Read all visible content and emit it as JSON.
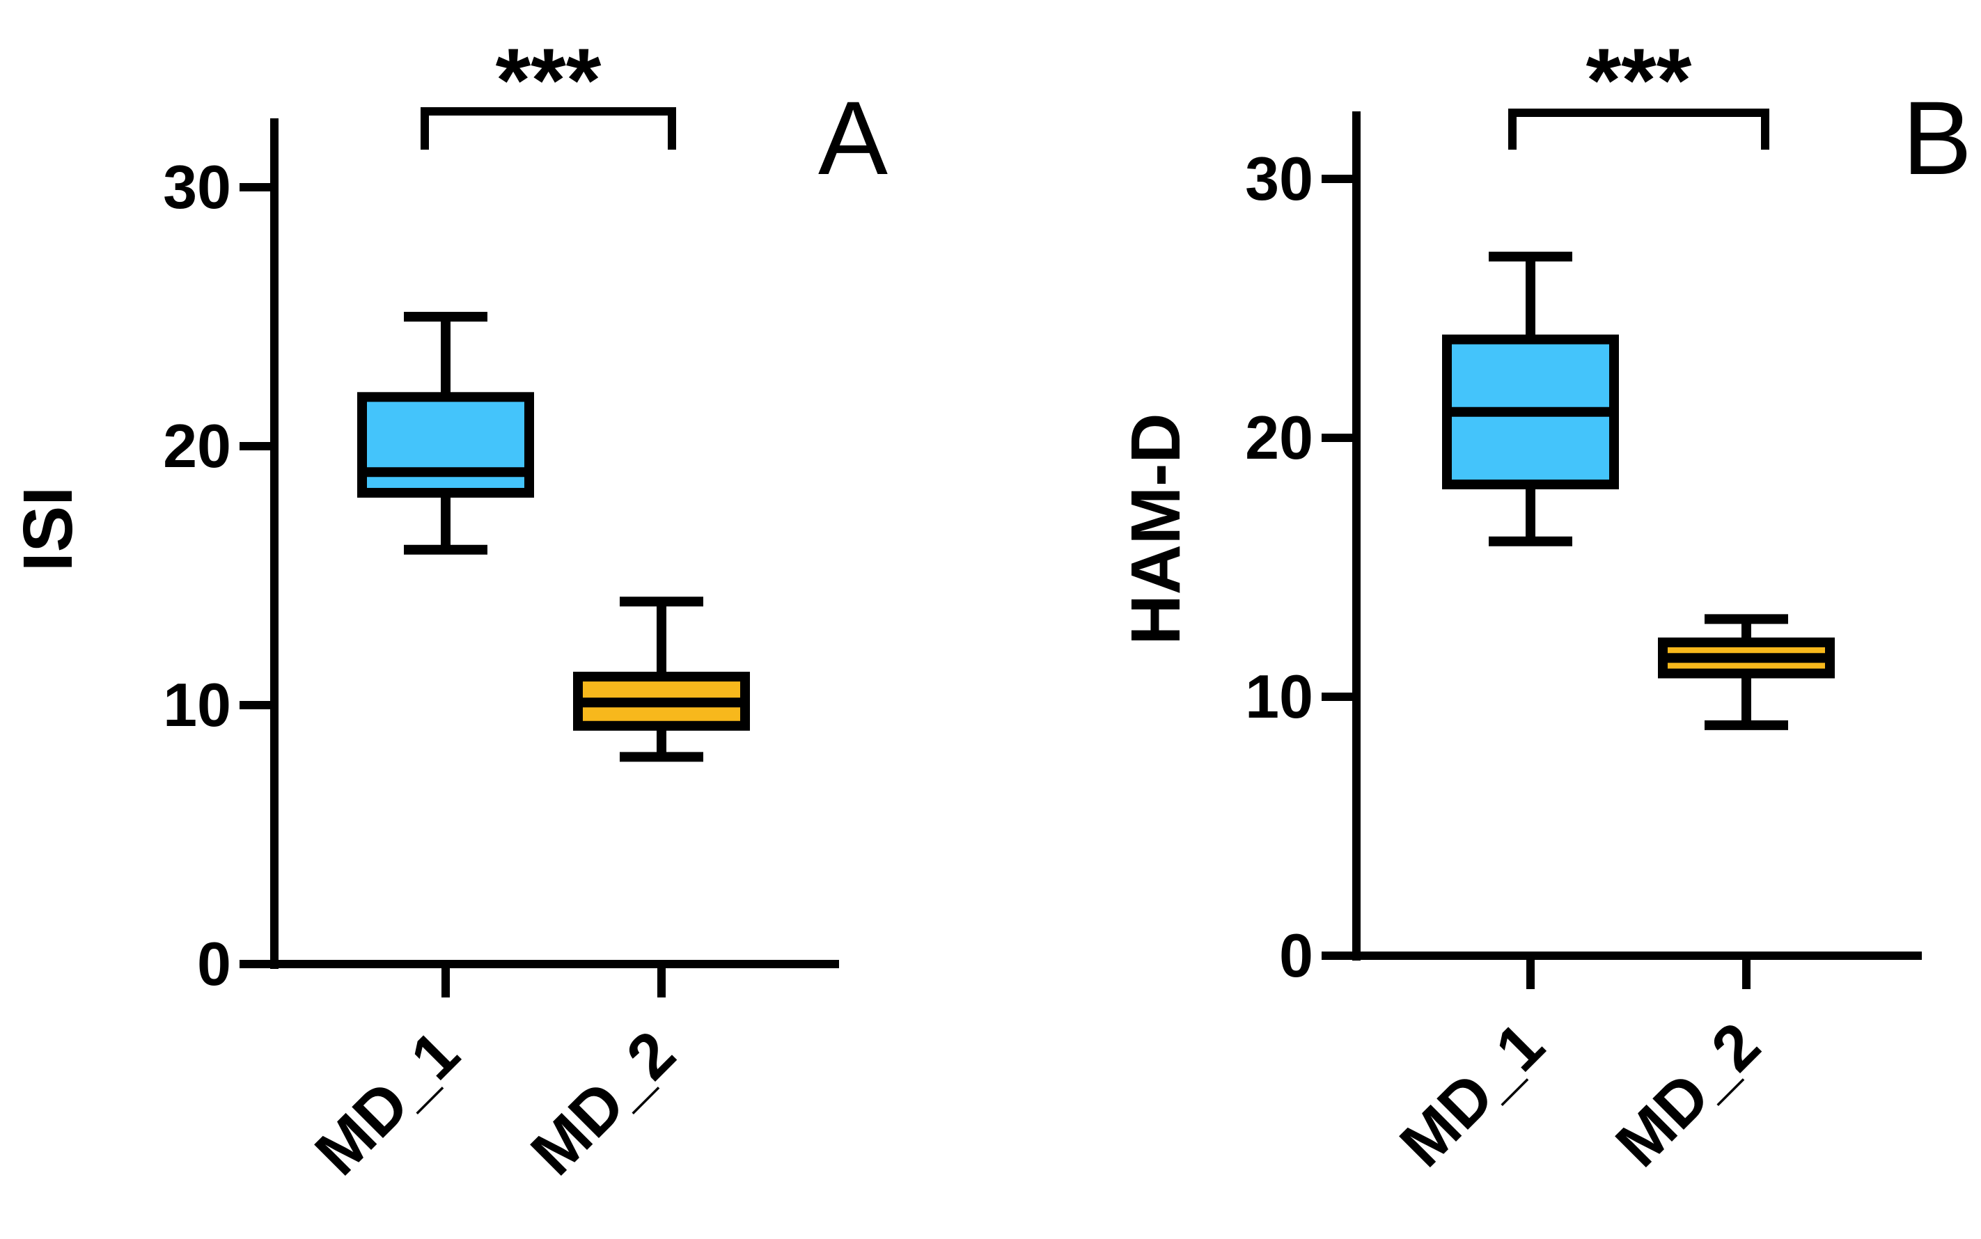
{
  "chart_data": [
    {
      "type": "box",
      "panel_label": "A",
      "ylabel": "ISI",
      "ylim": [
        0,
        33
      ],
      "yticks": [
        "0",
        "10",
        "20",
        "30"
      ],
      "categories": [
        "MD_1",
        "MD_2"
      ],
      "colors": [
        "#44c4fb",
        "#f7b81c"
      ],
      "boxes": [
        {
          "min": 16,
          "q1": 18.2,
          "median": 19,
          "q3": 21.9,
          "max": 25
        },
        {
          "min": 8,
          "q1": 9.2,
          "median": 10.1,
          "q3": 11.1,
          "max": 14
        }
      ],
      "significance": {
        "text": "***"
      }
    },
    {
      "type": "box",
      "panel_label": "B",
      "ylabel": "HAM-D",
      "ylim": [
        0,
        33
      ],
      "yticks": [
        "0",
        "10",
        "20",
        "30"
      ],
      "categories": [
        "MD_1",
        "MD_2"
      ],
      "colors": [
        "#44c4fb",
        "#f7b81c"
      ],
      "boxes": [
        {
          "min": 16,
          "q1": 18.2,
          "median": 21,
          "q3": 23.8,
          "max": 27
        },
        {
          "min": 8.9,
          "q1": 10.9,
          "median": 11.5,
          "q3": 12.1,
          "max": 13
        }
      ],
      "significance": {
        "text": "***"
      }
    }
  ]
}
